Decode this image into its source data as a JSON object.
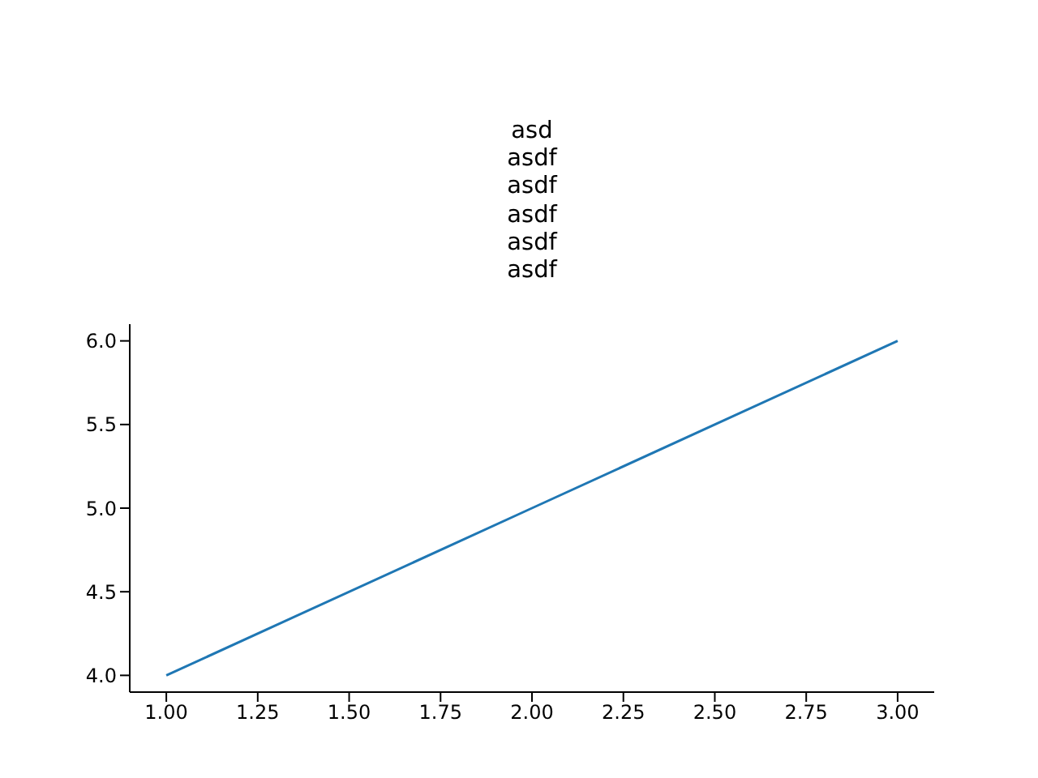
{
  "chart_data": {
    "type": "line",
    "title": "asd\nasdf\nasdf\nasdf\nasdf\nasdf",
    "x": [
      1,
      2,
      3
    ],
    "series": [
      {
        "color": "#1f77b4",
        "values": [
          4,
          5,
          6
        ]
      }
    ],
    "xlim": [
      0.9,
      3.1
    ],
    "ylim": [
      3.9,
      6.1
    ],
    "xticks": [
      {
        "value": 1,
        "label": "1.00"
      },
      {
        "value": 1.25,
        "label": "1.25"
      },
      {
        "value": 1.5,
        "label": "1.50"
      },
      {
        "value": 1.75,
        "label": "1.75"
      },
      {
        "value": 2,
        "label": "2.00"
      },
      {
        "value": 2.25,
        "label": "2.25"
      },
      {
        "value": 2.5,
        "label": "2.50"
      },
      {
        "value": 2.75,
        "label": "2.75"
      },
      {
        "value": 3,
        "label": "3.00"
      }
    ],
    "yticks": [
      {
        "value": 4,
        "label": "4.0"
      },
      {
        "value": 4.5,
        "label": "4.5"
      },
      {
        "value": 5,
        "label": "5.0"
      },
      {
        "value": 5.5,
        "label": "5.5"
      },
      {
        "value": 6,
        "label": "6.0"
      }
    ],
    "grid": false,
    "legend": false,
    "marker": "none",
    "line_style": "solid"
  }
}
